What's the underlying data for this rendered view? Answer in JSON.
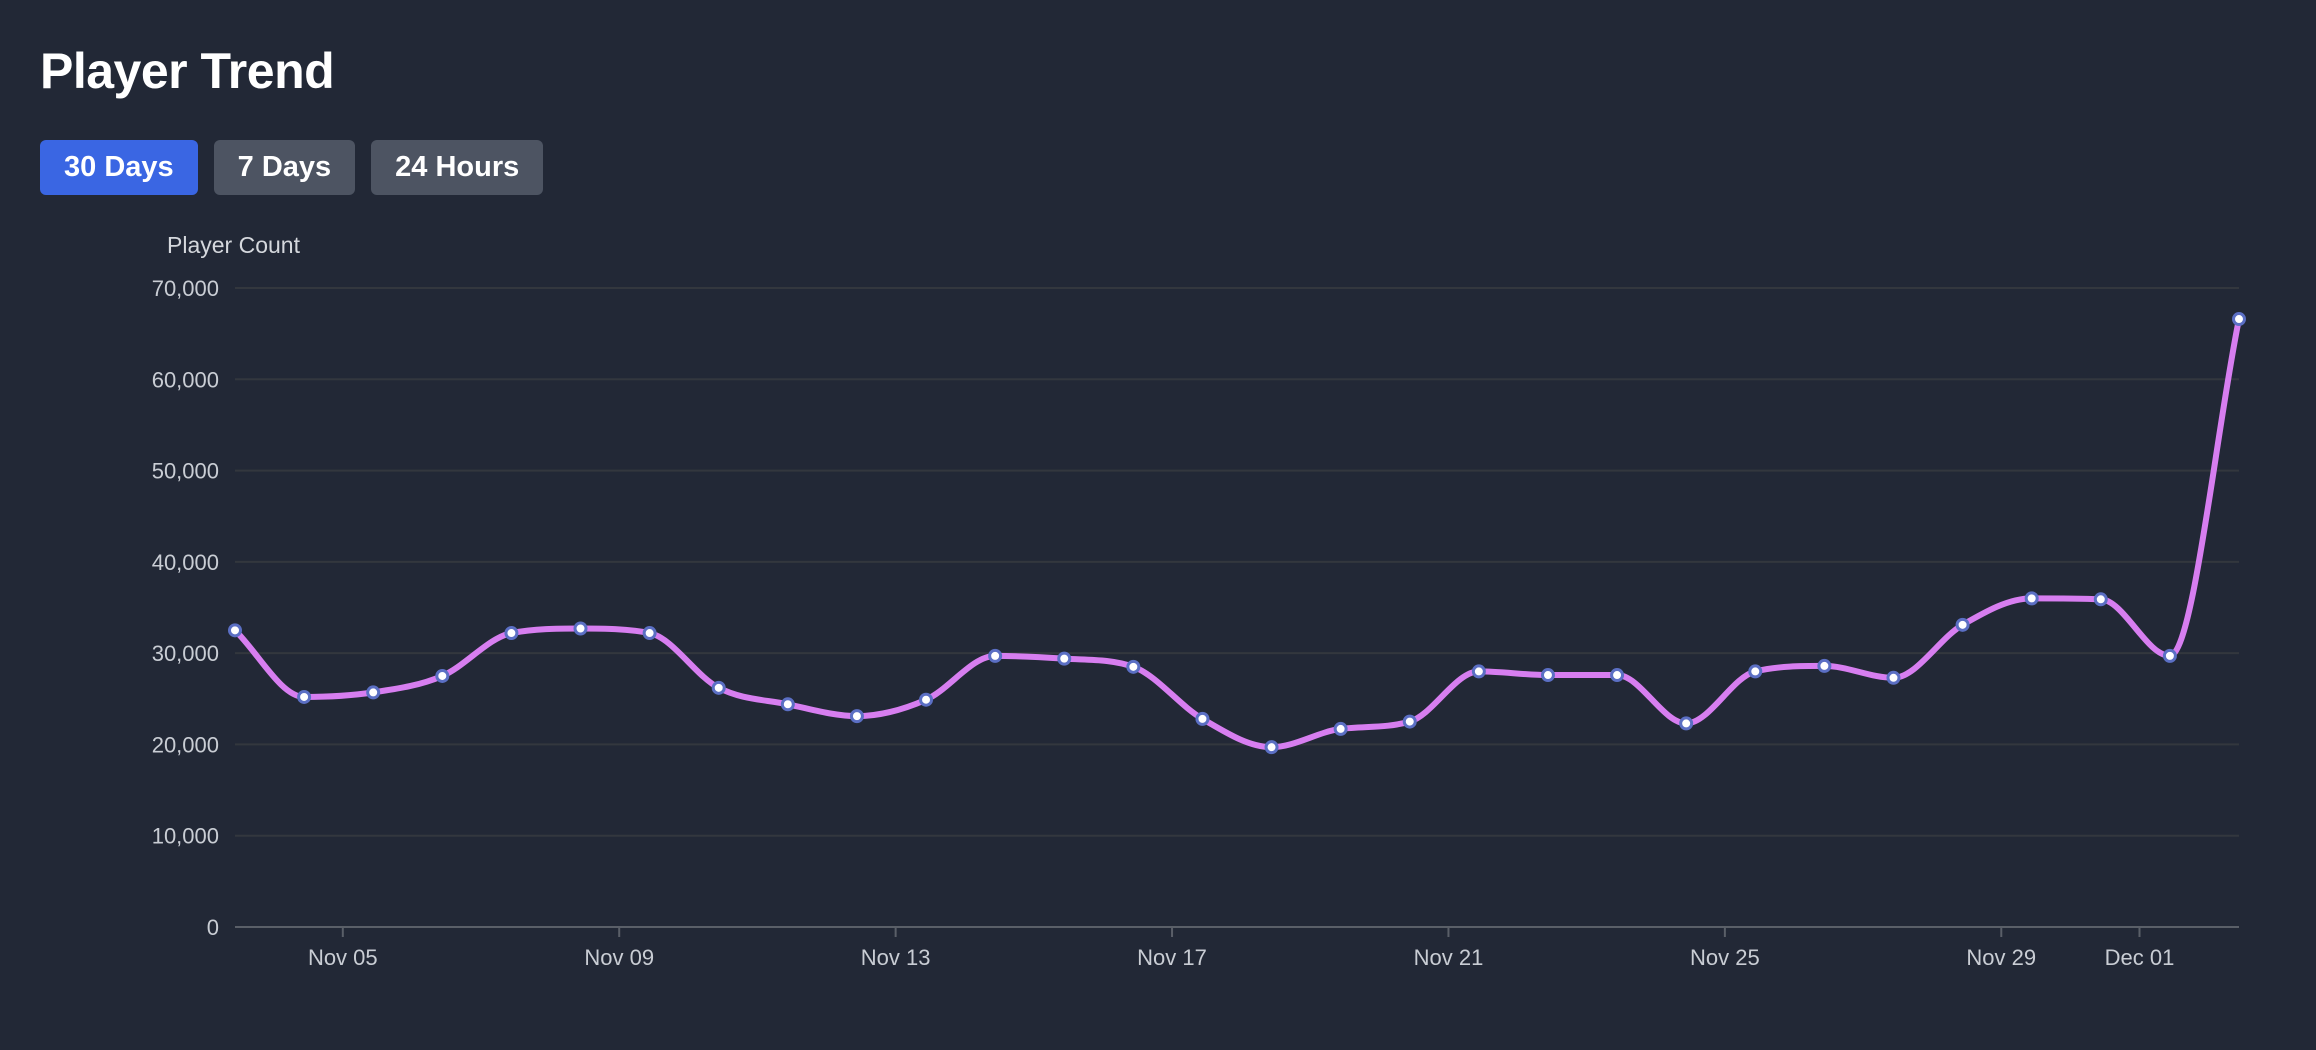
{
  "header": {
    "title": "Player Trend"
  },
  "range_buttons": [
    {
      "label": "30 Days",
      "active": true
    },
    {
      "label": "7 Days",
      "active": false
    },
    {
      "label": "24 Hours",
      "active": false
    }
  ],
  "colors": {
    "background": "#222836",
    "line": "#d77ef0",
    "point_border": "#5b6fc4",
    "active_button": "#3a66e3"
  },
  "chart_data": {
    "type": "line",
    "title": "",
    "ylabel": "Player Count",
    "xlabel": "",
    "ylim": [
      0,
      70000
    ],
    "grid": true,
    "smooth": true,
    "y_ticks": [
      "0",
      "10,000",
      "20,000",
      "30,000",
      "40,000",
      "50,000",
      "60,000",
      "70,000"
    ],
    "x_ticks": [
      "Nov 05",
      "Nov 09",
      "Nov 13",
      "Nov 17",
      "Nov 21",
      "Nov 25",
      "Nov 29",
      "Dec 01"
    ],
    "x": [
      "Nov 03",
      "Nov 04",
      "Nov 05",
      "Nov 06",
      "Nov 07",
      "Nov 08",
      "Nov 09",
      "Nov 10",
      "Nov 11",
      "Nov 12",
      "Nov 13",
      "Nov 14",
      "Nov 15",
      "Nov 16",
      "Nov 17",
      "Nov 18",
      "Nov 19",
      "Nov 20",
      "Nov 21",
      "Nov 22",
      "Nov 23",
      "Nov 24",
      "Nov 25",
      "Nov 26",
      "Nov 27",
      "Nov 28",
      "Nov 29",
      "Nov 30",
      "Dec 01",
      "Dec 02"
    ],
    "values": [
      32500,
      25200,
      25700,
      27500,
      32200,
      32700,
      32200,
      26200,
      24400,
      23100,
      24900,
      29700,
      29400,
      28500,
      22800,
      19700,
      21700,
      22500,
      28000,
      27600,
      27600,
      22300,
      28000,
      28600,
      27300,
      33100,
      36000,
      35900,
      29700,
      66600
    ]
  }
}
